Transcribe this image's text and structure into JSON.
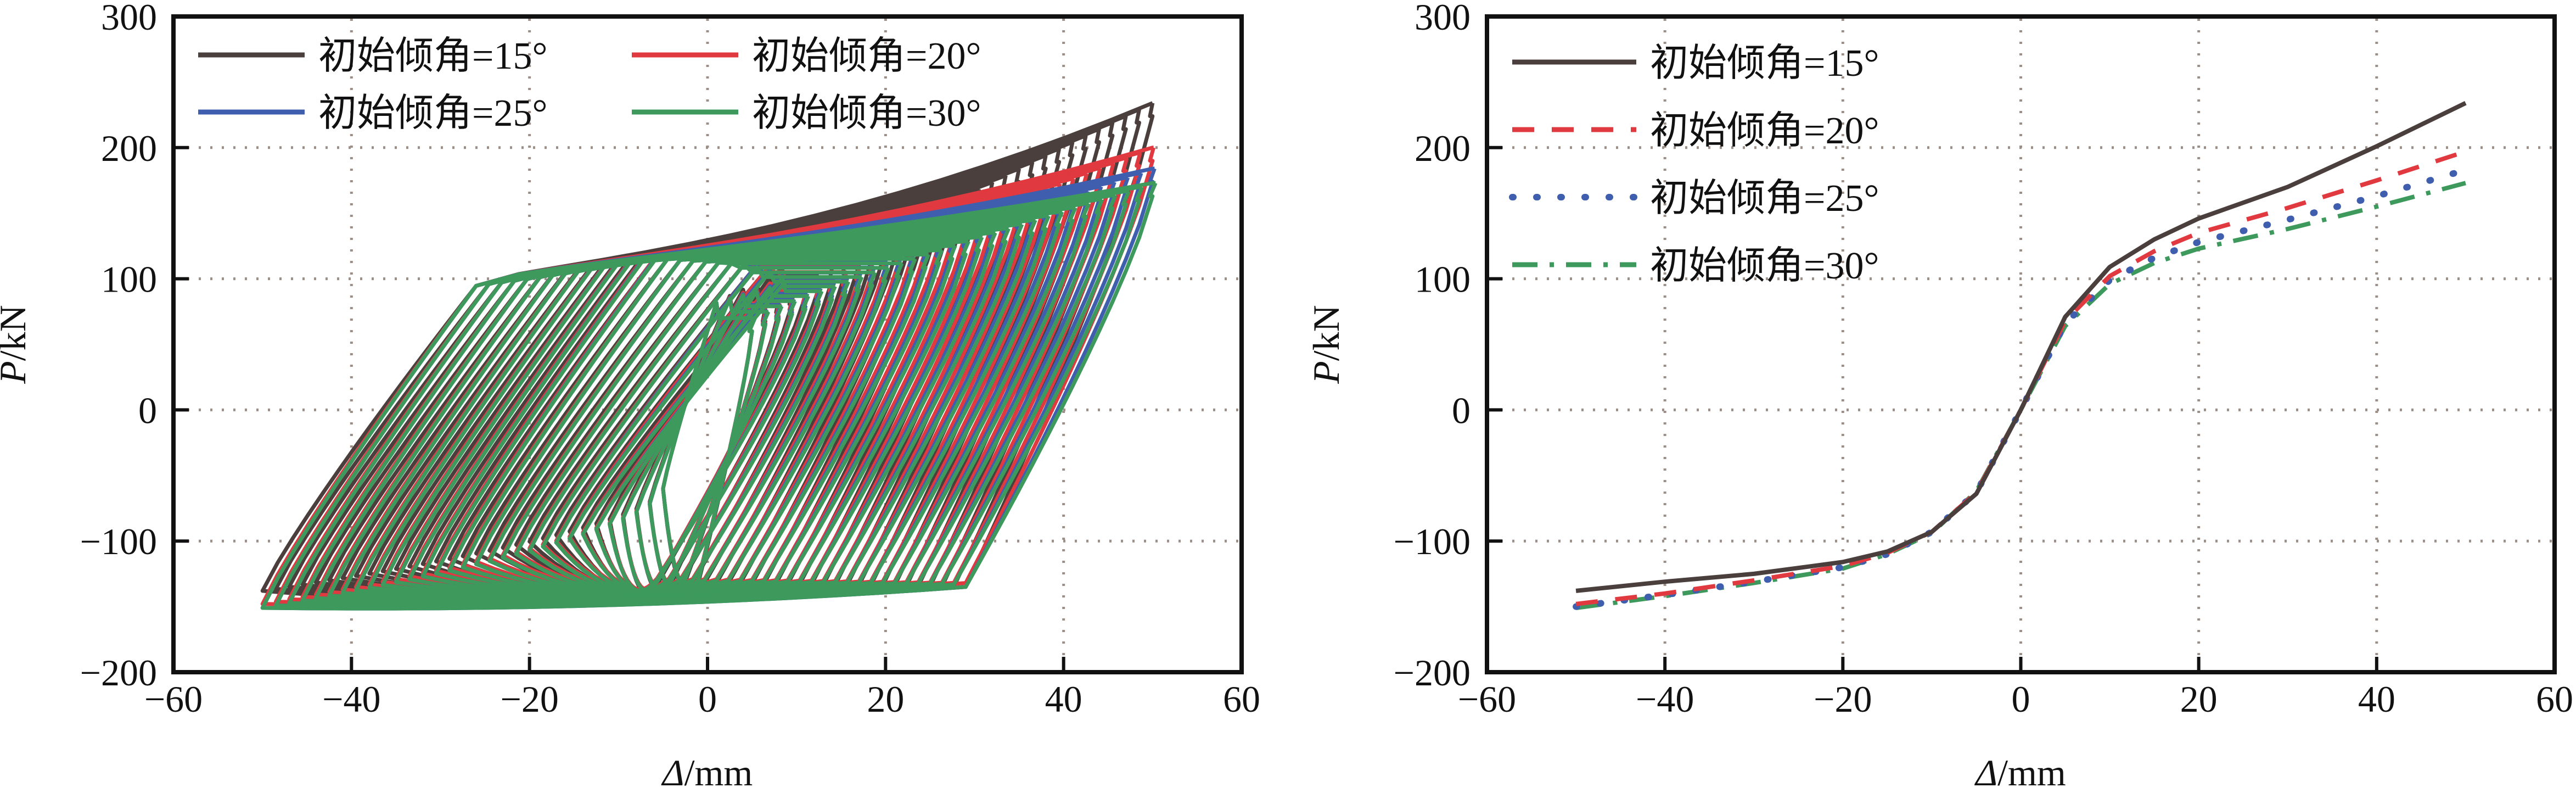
{
  "chart_data": [
    {
      "type": "line",
      "subtype": "hysteresis",
      "title": "",
      "xlabel": "Δ/mm",
      "ylabel": "P/kN",
      "xlabel_parts": {
        "symbol": "Δ",
        "unit": "/mm"
      },
      "ylabel_parts": {
        "symbol": "P",
        "unit": "/kN"
      },
      "xlim": [
        -60,
        60
      ],
      "ylim": [
        -200,
        300
      ],
      "xticks": [
        "−60",
        "−40",
        "−20",
        "0",
        "20",
        "40",
        "60"
      ],
      "yticks": [
        "−200",
        "−100",
        "0",
        "100",
        "200",
        "300"
      ],
      "xtick_values": [
        -60,
        -40,
        -20,
        0,
        20,
        40,
        60
      ],
      "ytick_values": [
        -200,
        -100,
        0,
        100,
        200,
        300
      ],
      "grid": true,
      "legend_position": "top-left",
      "legend_columns": 2,
      "cycle_amplitudes": {
        "start": 5,
        "end": 50,
        "step": 1.5
      },
      "series": [
        {
          "name": "初始倾角=15°",
          "color": "#4a3f3c",
          "peak_pos": 234,
          "peak_neg": -138,
          "min_neg": -153
        },
        {
          "name": "初始倾角=20°",
          "color": "#e0393f",
          "peak_pos": 200,
          "peak_neg": -148,
          "min_neg": -150
        },
        {
          "name": "初始倾角=25°",
          "color": "#3f5fae",
          "peak_pos": 184,
          "peak_neg": -151,
          "min_neg": -151
        },
        {
          "name": "初始倾角=30°",
          "color": "#3d9a5c",
          "peak_pos": 173,
          "peak_neg": -151,
          "min_neg": -151
        }
      ]
    },
    {
      "type": "line",
      "subtype": "skeleton",
      "title": "",
      "xlabel": "Δ/mm",
      "ylabel": "P/kN",
      "xlabel_parts": {
        "symbol": "Δ",
        "unit": "/mm"
      },
      "ylabel_parts": {
        "symbol": "P",
        "unit": "/kN"
      },
      "xlim": [
        -60,
        60
      ],
      "ylim": [
        -200,
        300
      ],
      "xticks": [
        "−60",
        "−40",
        "−20",
        "0",
        "20",
        "40",
        "60"
      ],
      "yticks": [
        "−200",
        "−100",
        "0",
        "100",
        "200",
        "300"
      ],
      "xtick_values": [
        -60,
        -40,
        -20,
        0,
        20,
        40,
        60
      ],
      "ytick_values": [
        -200,
        -100,
        0,
        100,
        200,
        300
      ],
      "grid": true,
      "legend_position": "top-left",
      "x": [
        -50,
        -40,
        -30,
        -20,
        -15,
        -10,
        -5,
        0,
        5,
        10,
        15,
        20,
        30,
        40,
        50
      ],
      "series": [
        {
          "name": "初始倾角=15°",
          "color": "#4a3f3c",
          "dash": "solid",
          "values": [
            -138,
            -131,
            -125,
            -116,
            -108,
            -93,
            -64,
            0,
            71,
            109,
            130,
            146,
            170,
            201,
            234
          ]
        },
        {
          "name": "初始倾角=20°",
          "color": "#e0393f",
          "dash": "dashed",
          "values": [
            -148,
            -140,
            -130,
            -119,
            -109,
            -93,
            -63,
            0,
            68,
            102,
            121,
            135,
            154,
            175,
            197
          ]
        },
        {
          "name": "初始倾角=25°",
          "color": "#3f5fae",
          "dash": "dotted",
          "values": [
            -150,
            -141,
            -131,
            -120,
            -110,
            -93,
            -63,
            0,
            66,
            99,
            116,
            128,
            145,
            163,
            183
          ]
        },
        {
          "name": "初始倾角=30°",
          "color": "#3d9a5c",
          "dash": "dashdot",
          "values": [
            -151,
            -142,
            -132,
            -121,
            -110,
            -94,
            -62,
            0,
            64,
            96,
            112,
            123,
            138,
            155,
            173
          ]
        }
      ]
    }
  ]
}
